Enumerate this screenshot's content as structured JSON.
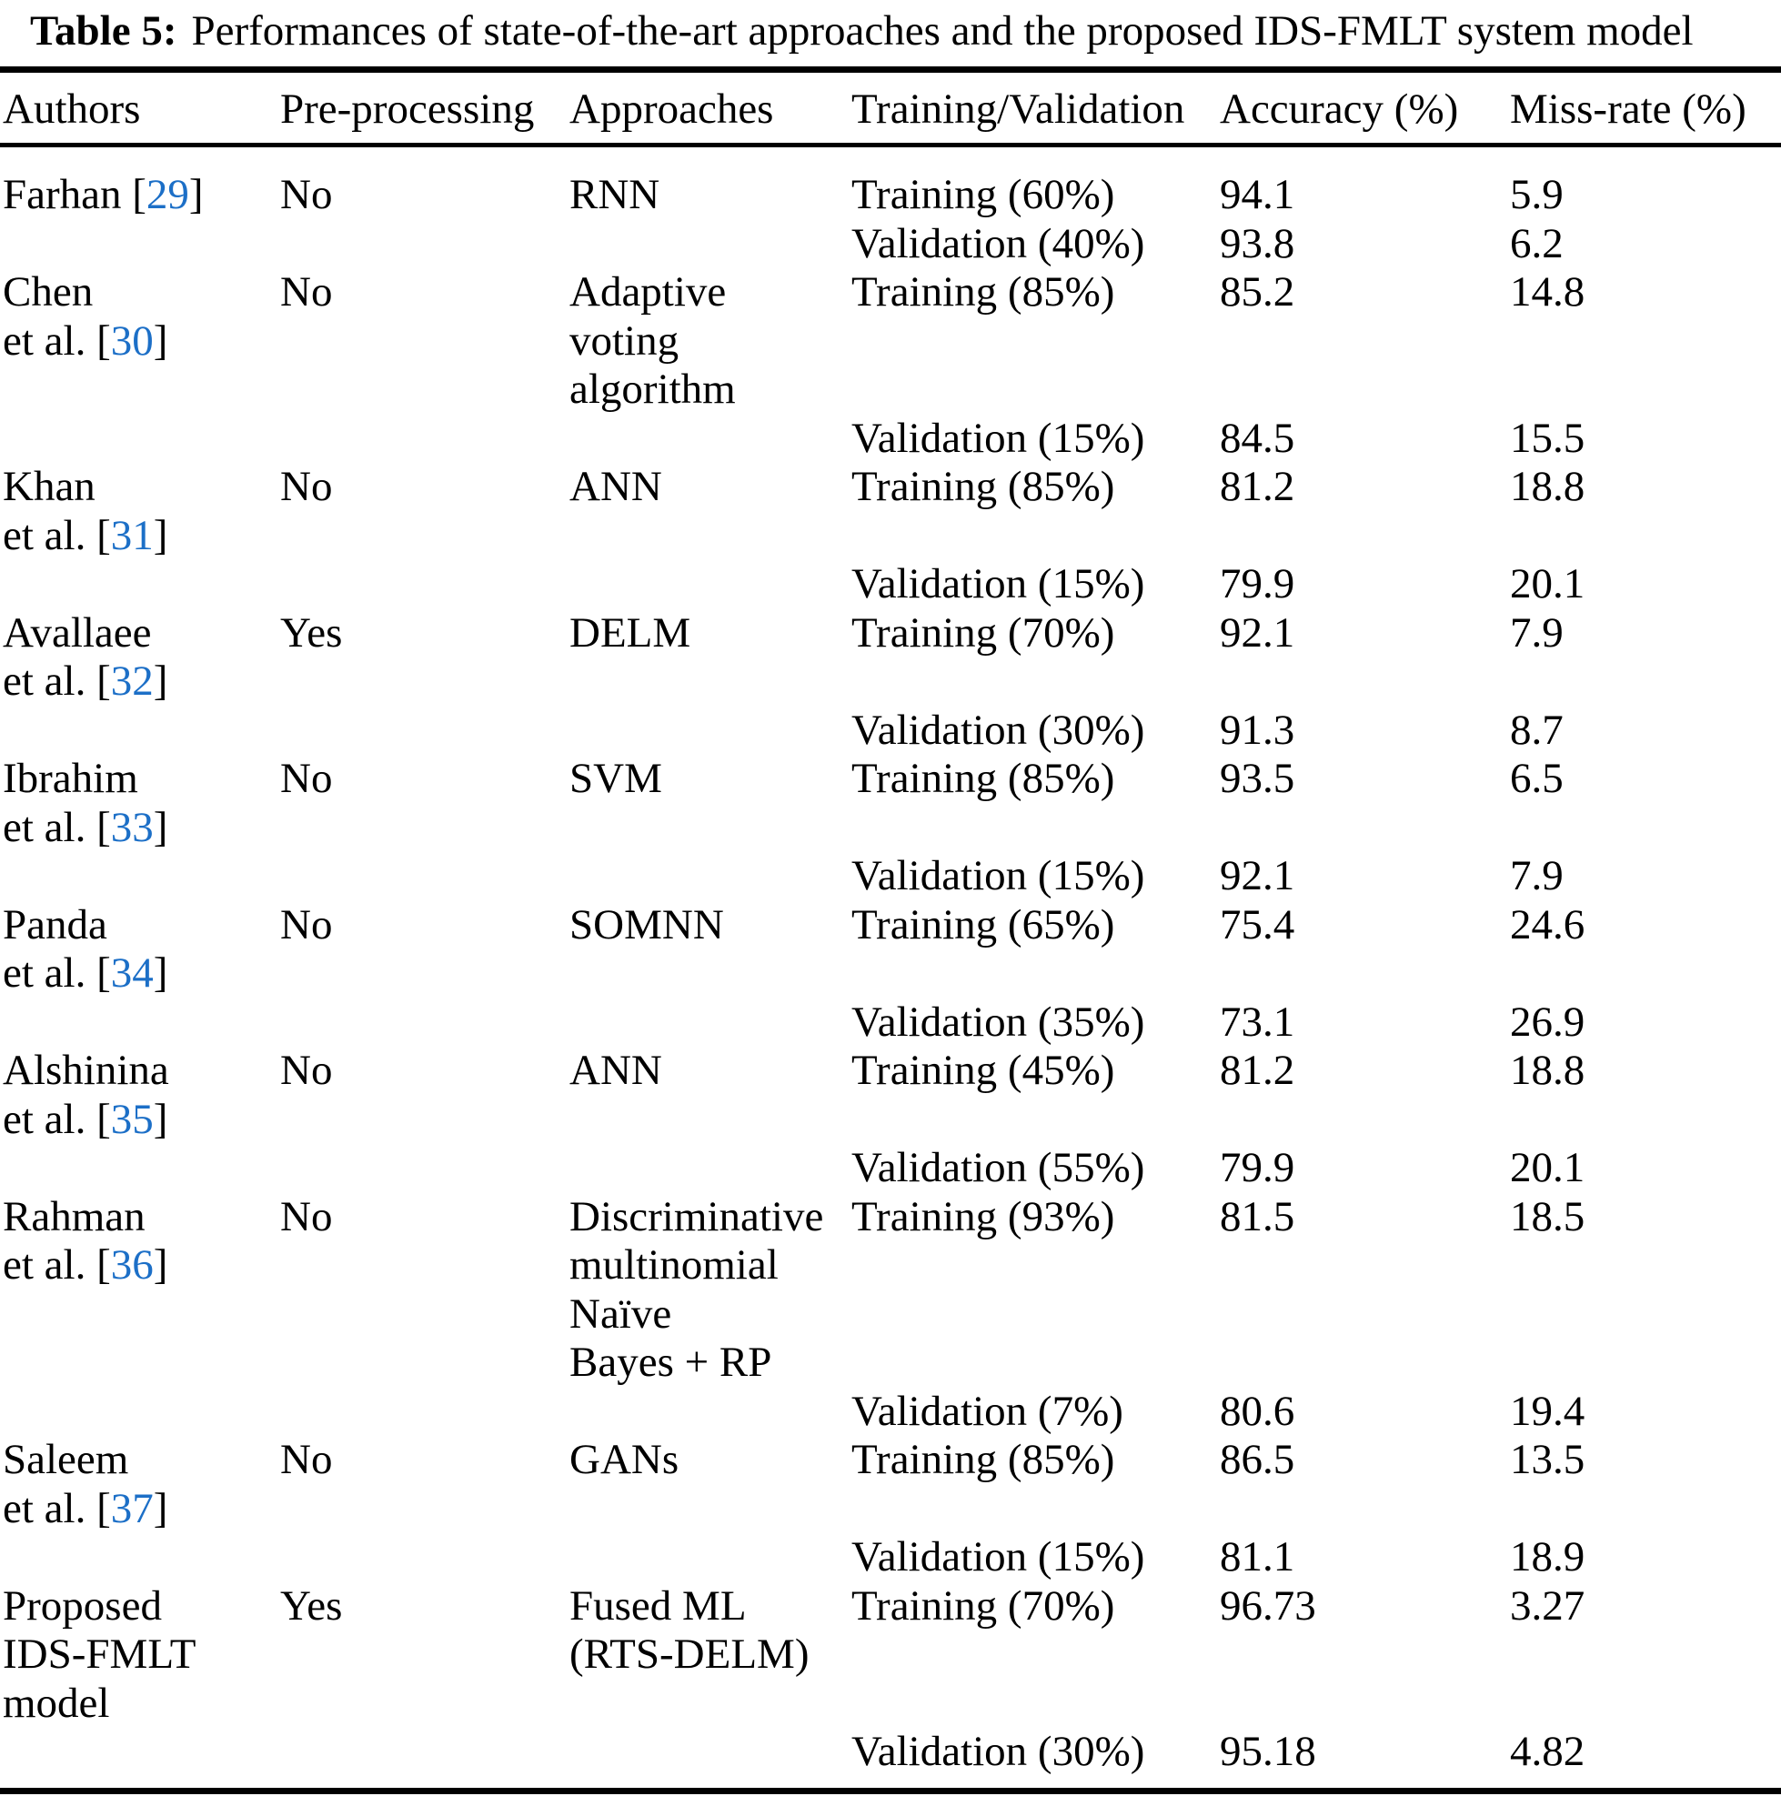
{
  "caption": {
    "label": "Table 5:",
    "text": "Performances of state-of-the-art approaches and the proposed IDS-FMLT system model"
  },
  "columns": [
    "Authors",
    "Pre-processing",
    "Approaches",
    "Training/Validation",
    "Accuracy (%)",
    "Miss-rate (%)"
  ],
  "link_color": "#1c6fc7",
  "text_color": "#000000",
  "rows": [
    {
      "author_lines": [
        [
          {
            "t": "Farhan ["
          },
          {
            "t": "29",
            "cite": true
          },
          {
            "t": "]"
          }
        ]
      ],
      "preprocessing": "No",
      "approach_lines": [
        "RNN"
      ],
      "entries": [
        {
          "split": "Training (60%)",
          "accuracy": "94.1",
          "miss_rate": "5.9"
        },
        {
          "split": "Validation (40%)",
          "accuracy": "93.8",
          "miss_rate": "6.2"
        }
      ]
    },
    {
      "author_lines": [
        [
          {
            "t": "Chen"
          }
        ],
        [
          {
            "t": "et al. ["
          },
          {
            "t": "30",
            "cite": true
          },
          {
            "t": "]"
          }
        ]
      ],
      "preprocessing": "No",
      "approach_lines": [
        "Adaptive",
        "voting",
        "algorithm"
      ],
      "entries": [
        {
          "split": "Training (85%)",
          "accuracy": "85.2",
          "miss_rate": "14.8"
        },
        {
          "split": "Validation (15%)",
          "accuracy": "84.5",
          "miss_rate": "15.5"
        }
      ]
    },
    {
      "author_lines": [
        [
          {
            "t": "Khan"
          }
        ],
        [
          {
            "t": "et al. ["
          },
          {
            "t": "31",
            "cite": true
          },
          {
            "t": "]"
          }
        ]
      ],
      "preprocessing": "No",
      "approach_lines": [
        "ANN"
      ],
      "entries": [
        {
          "split": "Training (85%)",
          "accuracy": "81.2",
          "miss_rate": "18.8"
        },
        {
          "split": "Validation (15%)",
          "accuracy": "79.9",
          "miss_rate": "20.1"
        }
      ]
    },
    {
      "author_lines": [
        [
          {
            "t": "Avallaee"
          }
        ],
        [
          {
            "t": "et al. ["
          },
          {
            "t": "32",
            "cite": true
          },
          {
            "t": "]"
          }
        ]
      ],
      "preprocessing": "Yes",
      "approach_lines": [
        "DELM"
      ],
      "entries": [
        {
          "split": "Training (70%)",
          "accuracy": "92.1",
          "miss_rate": "7.9"
        },
        {
          "split": "Validation (30%)",
          "accuracy": "91.3",
          "miss_rate": "8.7"
        }
      ]
    },
    {
      "author_lines": [
        [
          {
            "t": "Ibrahim"
          }
        ],
        [
          {
            "t": "et al. ["
          },
          {
            "t": "33",
            "cite": true
          },
          {
            "t": "]"
          }
        ]
      ],
      "preprocessing": "No",
      "approach_lines": [
        "SVM"
      ],
      "entries": [
        {
          "split": "Training (85%)",
          "accuracy": "93.5",
          "miss_rate": "6.5"
        },
        {
          "split": "Validation (15%)",
          "accuracy": "92.1",
          "miss_rate": "7.9"
        }
      ]
    },
    {
      "author_lines": [
        [
          {
            "t": "Panda"
          }
        ],
        [
          {
            "t": "et al. ["
          },
          {
            "t": "34",
            "cite": true
          },
          {
            "t": "]"
          }
        ]
      ],
      "preprocessing": "No",
      "approach_lines": [
        "SOMNN"
      ],
      "entries": [
        {
          "split": "Training (65%)",
          "accuracy": "75.4",
          "miss_rate": "24.6"
        },
        {
          "split": "Validation (35%)",
          "accuracy": "73.1",
          "miss_rate": "26.9"
        }
      ]
    },
    {
      "author_lines": [
        [
          {
            "t": "Alshinina"
          }
        ],
        [
          {
            "t": "et al. ["
          },
          {
            "t": "35",
            "cite": true
          },
          {
            "t": "]"
          }
        ]
      ],
      "preprocessing": "No",
      "approach_lines": [
        "ANN"
      ],
      "entries": [
        {
          "split": "Training (45%)",
          "accuracy": "81.2",
          "miss_rate": "18.8"
        },
        {
          "split": "Validation (55%)",
          "accuracy": "79.9",
          "miss_rate": "20.1"
        }
      ]
    },
    {
      "author_lines": [
        [
          {
            "t": "Rahman"
          }
        ],
        [
          {
            "t": "et al. ["
          },
          {
            "t": "36",
            "cite": true
          },
          {
            "t": "]"
          }
        ]
      ],
      "preprocessing": "No",
      "approach_lines": [
        "Discriminative",
        "multinomial",
        "Naïve",
        "Bayes + RP"
      ],
      "entries": [
        {
          "split": "Training (93%)",
          "accuracy": "81.5",
          "miss_rate": "18.5"
        },
        {
          "split": "Validation (7%)",
          "accuracy": "80.6",
          "miss_rate": "19.4"
        }
      ]
    },
    {
      "author_lines": [
        [
          {
            "t": "Saleem"
          }
        ],
        [
          {
            "t": "et al. ["
          },
          {
            "t": "37",
            "cite": true
          },
          {
            "t": "]"
          }
        ]
      ],
      "preprocessing": "No",
      "approach_lines": [
        "GANs"
      ],
      "entries": [
        {
          "split": "Training (85%)",
          "accuracy": "86.5",
          "miss_rate": "13.5"
        },
        {
          "split": "Validation (15%)",
          "accuracy": "81.1",
          "miss_rate": "18.9"
        }
      ]
    },
    {
      "author_lines": [
        [
          {
            "t": "Proposed"
          }
        ],
        [
          {
            "t": "IDS-FMLT"
          }
        ],
        [
          {
            "t": "model"
          }
        ]
      ],
      "preprocessing": "Yes",
      "approach_lines": [
        "Fused ML",
        "(RTS-DELM)"
      ],
      "entries": [
        {
          "split": "Training (70%)",
          "accuracy": "96.73",
          "miss_rate": "3.27"
        },
        {
          "split": "Validation (30%)",
          "accuracy": "95.18",
          "miss_rate": "4.82"
        }
      ]
    }
  ]
}
